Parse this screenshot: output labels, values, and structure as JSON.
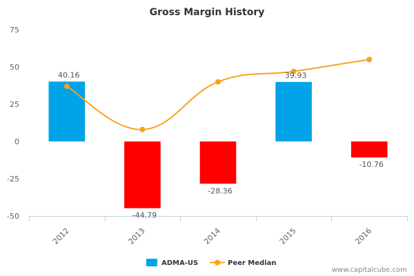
{
  "chart_data": {
    "type": "bar",
    "title": "Gross Margin History",
    "categories": [
      "2012",
      "2013",
      "2014",
      "2015",
      "2016"
    ],
    "series": [
      {
        "name": "ADMA-US",
        "type": "bar",
        "values": [
          40.16,
          -44.79,
          -28.36,
          39.93,
          -10.76
        ],
        "data_labels": [
          "40.16",
          "-44.79",
          "-28.36",
          "39.93",
          "-10.76"
        ]
      },
      {
        "name": "Peer Median",
        "type": "line",
        "values": [
          37,
          8,
          40,
          47,
          55
        ]
      }
    ],
    "ylim": [
      -50,
      75
    ],
    "yticks": [
      75,
      50,
      25,
      0,
      -25,
      -50
    ],
    "ytick_labels": [
      "75",
      "50",
      "25",
      "0",
      "-25",
      "-50"
    ],
    "grid": false,
    "legend": "bottom-center",
    "colors": {
      "positive": "#00a2e8",
      "negative": "#ff0000",
      "line": "#f7a21b"
    }
  },
  "watermark": "www.capitalcube.com"
}
